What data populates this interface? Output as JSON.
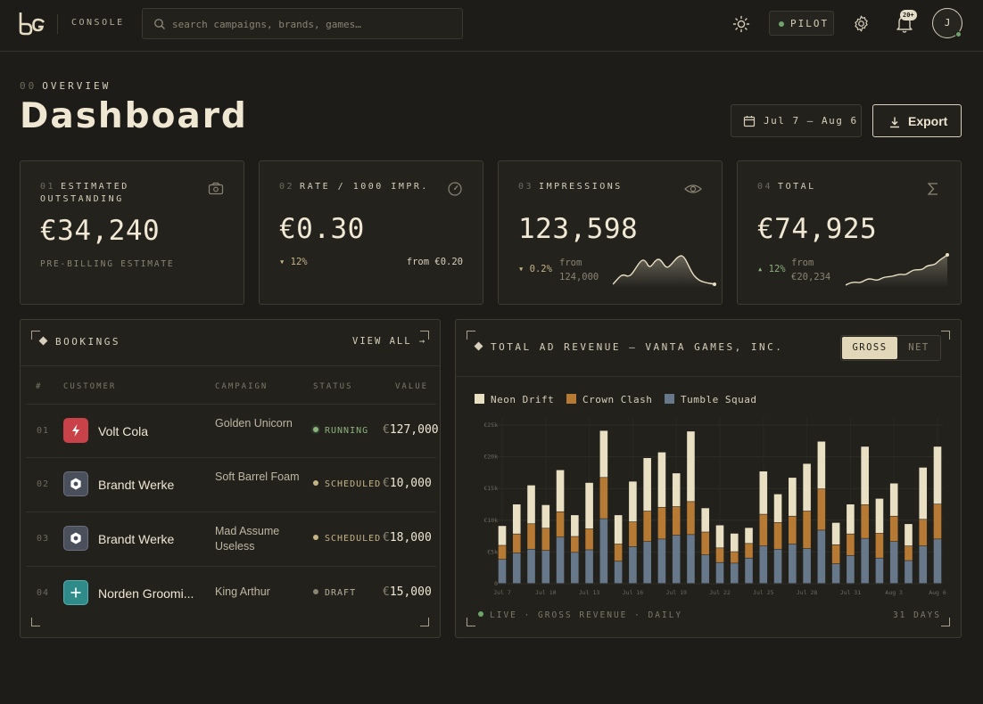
{
  "header": {
    "brand": "bg",
    "section_label": "CONSOLE",
    "search_placeholder": "search campaigns, brands, games…",
    "mode_label": "PILOT",
    "notifications_badge": "20+",
    "avatar_initial": "J"
  },
  "page": {
    "eyebrow_num": "00",
    "eyebrow": "OVERVIEW",
    "title": "Dashboard",
    "date_range": "Jul 7 – Aug 6",
    "export_label": "Export"
  },
  "kpis": [
    {
      "num": "01",
      "label_line1": "ESTIMATED",
      "label_line2": "OUTSTANDING",
      "value": "€34,240",
      "sub": "PRE-BILLING ESTIMATE",
      "icon": "wallet-icon"
    },
    {
      "num": "02",
      "label": "RATE / 1000 IMPR.",
      "value": "€0.30",
      "delta": "▾ 12%",
      "from": "from €0.20",
      "icon": "gauge-icon"
    },
    {
      "num": "03",
      "label": "IMPRESSIONS",
      "value": "123,598",
      "delta": "▾ 0.2%",
      "from_line1": "from",
      "from_line2": "124,000",
      "icon": "eye-icon"
    },
    {
      "num": "04",
      "label": "TOTAL",
      "value": "€74,925",
      "delta": "▴ 12%",
      "from_line1": "from",
      "from_line2": "€20,234",
      "icon": "sigma-icon"
    }
  ],
  "bookings": {
    "title": "BOOKINGS",
    "view_all": "VIEW ALL →",
    "columns": [
      "#",
      "CUSTOMER",
      "CAMPAIGN",
      "STATUS",
      "VALUE"
    ],
    "rows": [
      {
        "idx": "01",
        "customer": "Volt Cola",
        "campaign": "Golden Unicorn",
        "status": "RUNNING",
        "value_currency": "€",
        "value": "127,000",
        "logo_color": "#c9424a",
        "status_color": "#8cb27d",
        "icon": "bolt-icon"
      },
      {
        "idx": "02",
        "customer": "Brandt Werke",
        "campaign": "Soft Barrel Foam",
        "status": "SCHEDULED",
        "value_currency": "€",
        "value": "10,000",
        "logo_color": "#4a4f5c",
        "status_color": "#c6b487",
        "icon": "hex-nut-icon"
      },
      {
        "idx": "03",
        "customer": "Brandt Werke",
        "campaign": "Mad Assume Useless",
        "status": "SCHEDULED",
        "value_currency": "€",
        "value": "18,000",
        "logo_color": "#4a4f5c",
        "status_color": "#c6b487",
        "icon": "hex-nut-icon"
      },
      {
        "idx": "04",
        "customer": "Norden Groomi...",
        "campaign": "King Arthur",
        "status": "DRAFT",
        "value_currency": "€",
        "value": "15,000",
        "logo_color": "#2f8a8a",
        "status_color": "#8a8472",
        "icon": "plus-icon"
      }
    ]
  },
  "revenue": {
    "title": "TOTAL AD REVENUE — VANTA GAMES, INC.",
    "toggle": [
      "GROSS",
      "NET"
    ],
    "footer_left": "LIVE · GROSS REVENUE · DAILY",
    "footer_right": "31 DAYS"
  },
  "colors": {
    "neon_drift": "#e9dfc3",
    "crown_clash": "#b77a35",
    "tumble_squad": "#66788a",
    "accent_green": "#6fa56b"
  },
  "chart_data": {
    "type": "bar",
    "stacked": true,
    "y_ticks": [
      "0",
      "€5k",
      "€10k",
      "€15k",
      "€20k",
      "€25k"
    ],
    "ylim": [
      0,
      25000
    ],
    "x_tick_labels": [
      "Jul 7",
      "Jul 10",
      "Jul 13",
      "Jul 16",
      "Jul 19",
      "Jul 22",
      "Jul 25",
      "Jul 28",
      "Jul 31",
      "Aug 3",
      "Aug 6"
    ],
    "grid": true,
    "legend_position": "top-left",
    "series": [
      {
        "name": "Tumble Squad",
        "values": [
          3800,
          4800,
          5400,
          5200,
          7300,
          4900,
          5300,
          10200,
          3500,
          5800,
          6600,
          7000,
          7600,
          7700,
          4500,
          3300,
          3200,
          4000,
          5900,
          5400,
          6200,
          5500,
          8400,
          3100,
          4400,
          7100,
          4000,
          6600,
          3600,
          5900,
          7000
        ]
      },
      {
        "name": "Crown Clash",
        "values": [
          2200,
          3000,
          4000,
          3500,
          4000,
          2500,
          3300,
          6500,
          2700,
          3900,
          4800,
          5000,
          4500,
          5200,
          3600,
          2300,
          1800,
          2300,
          5000,
          4200,
          4400,
          5900,
          6500,
          3000,
          3400,
          5300,
          3900,
          4000,
          2300,
          4200,
          5500
        ]
      },
      {
        "name": "Neon Drift",
        "values": [
          3100,
          4700,
          6100,
          3700,
          6600,
          3400,
          7300,
          7400,
          4600,
          6400,
          8400,
          8700,
          5300,
          11100,
          3800,
          3600,
          2900,
          2500,
          6800,
          4500,
          6100,
          7500,
          7500,
          3500,
          4700,
          9200,
          5500,
          5200,
          3500,
          8200,
          9100
        ]
      }
    ]
  }
}
